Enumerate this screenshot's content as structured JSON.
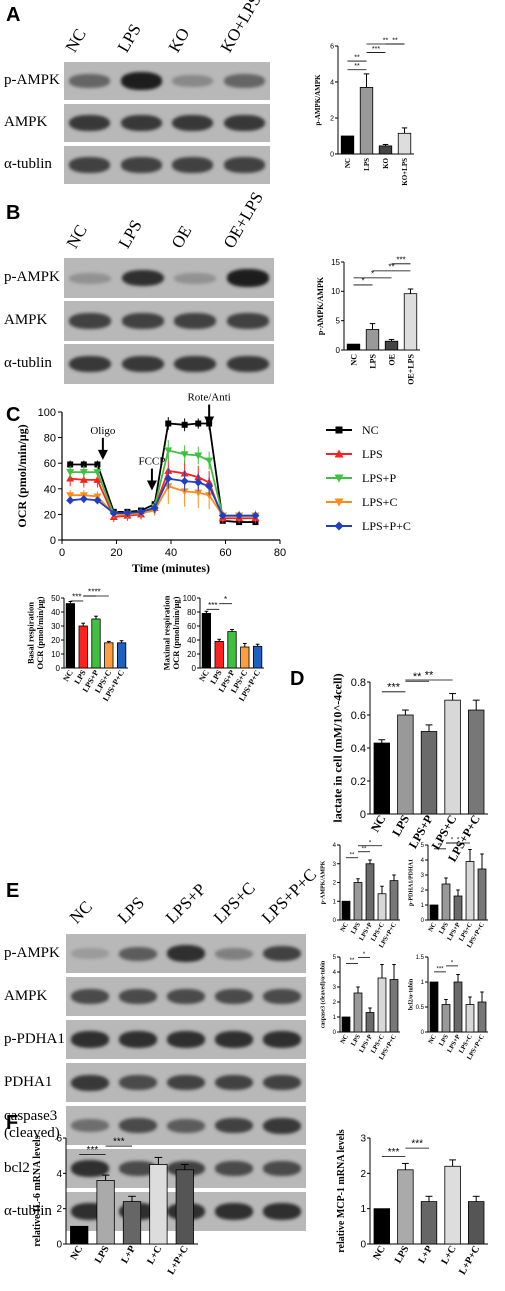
{
  "panels": {
    "A": {
      "letter": "A",
      "lanes": [
        "NC",
        "LPS",
        "KO",
        "KO+LPS"
      ],
      "blot_rows": [
        {
          "label": "p-AMPK",
          "intensity": [
            0.55,
            0.95,
            0.35,
            0.55
          ]
        },
        {
          "label": "AMPK",
          "intensity": [
            0.8,
            0.8,
            0.8,
            0.8
          ]
        },
        {
          "label": "α-tublin",
          "intensity": [
            0.75,
            0.75,
            0.75,
            0.75
          ]
        }
      ]
    },
    "B": {
      "letter": "B",
      "lanes": [
        "NC",
        "LPS",
        "OE",
        "OE+LPS"
      ],
      "blot_rows": [
        {
          "label": "p-AMPK",
          "intensity": [
            0.3,
            0.85,
            0.3,
            0.95
          ]
        },
        {
          "label": "AMPK",
          "intensity": [
            0.75,
            0.75,
            0.75,
            0.75
          ]
        },
        {
          "label": "α-tublin",
          "intensity": [
            0.8,
            0.8,
            0.8,
            0.8
          ]
        }
      ]
    },
    "C": {
      "letter": "C"
    },
    "D": {
      "letter": "D"
    },
    "E": {
      "letter": "E",
      "lanes": [
        "NC",
        "LPS",
        "LPS+P",
        "LPS+C",
        "LPS+P+C"
      ],
      "blot_rows": [
        {
          "label": "p-AMPK",
          "intensity": [
            0.25,
            0.6,
            0.85,
            0.4,
            0.75
          ]
        },
        {
          "label": "AMPK",
          "intensity": [
            0.7,
            0.7,
            0.7,
            0.7,
            0.7
          ]
        },
        {
          "label": "p-PDHA1",
          "intensity": [
            0.85,
            0.85,
            0.85,
            0.85,
            0.85
          ]
        },
        {
          "label": "PDHA1",
          "intensity": [
            0.8,
            0.7,
            0.75,
            0.75,
            0.75
          ]
        },
        {
          "label": "caspase3\n(cleaved)",
          "intensity": [
            0.5,
            0.7,
            0.6,
            0.75,
            0.8
          ]
        },
        {
          "label": "bcl2",
          "intensity": [
            0.85,
            0.7,
            0.75,
            0.7,
            0.7
          ]
        },
        {
          "label": "α-tublin",
          "intensity": [
            0.85,
            0.85,
            0.85,
            0.85,
            0.85
          ]
        }
      ]
    },
    "F": {
      "letter": "F"
    }
  },
  "chart_data": [
    {
      "id": "A-bar",
      "type": "bar",
      "categories": [
        "NC",
        "LPS",
        "KO",
        "KO+LPS"
      ],
      "values": [
        1.0,
        3.7,
        0.45,
        1.15
      ],
      "errors": [
        0.0,
        0.75,
        0.08,
        0.3
      ],
      "colors": [
        "#000000",
        "#999999",
        "#444444",
        "#dddddd"
      ],
      "ylabel": "p-AMPK/AMPK",
      "ylim": [
        0,
        6
      ],
      "yticks": [
        0,
        2,
        4,
        6
      ],
      "significance": [
        {
          "from": 0,
          "to": 1,
          "label": "**"
        },
        {
          "from": 0,
          "to": 1,
          "label": "**"
        },
        {
          "from": 1,
          "to": 2,
          "label": "***"
        },
        {
          "from": 1,
          "to": 3,
          "label": "**"
        },
        {
          "from": 2,
          "to": 3,
          "label": "**"
        }
      ]
    },
    {
      "id": "B-bar",
      "type": "bar",
      "categories": [
        "NC",
        "LPS",
        "OE",
        "OE+LPS"
      ],
      "values": [
        1.0,
        3.5,
        1.5,
        9.6
      ],
      "errors": [
        0.0,
        1.0,
        0.3,
        0.8
      ],
      "colors": [
        "#000000",
        "#999999",
        "#444444",
        "#dddddd"
      ],
      "ylabel": "p-AMPK/AMPK",
      "ylim": [
        0,
        15
      ],
      "yticks": [
        0,
        5,
        10,
        15
      ],
      "significance": [
        {
          "from": 0,
          "to": 1,
          "label": "*"
        },
        {
          "from": 0,
          "to": 2,
          "label": "*"
        },
        {
          "from": 1,
          "to": 3,
          "label": "**"
        },
        {
          "from": 2,
          "to": 3,
          "label": "***"
        }
      ]
    },
    {
      "id": "C-line",
      "type": "line",
      "xlabel": "Time (minutes)",
      "ylabel": "OCR (pmol/min/μg)",
      "xlim": [
        0,
        80
      ],
      "ylim": [
        0,
        100
      ],
      "xticks": [
        0,
        20,
        40,
        60,
        80
      ],
      "yticks": [
        0,
        20,
        40,
        60,
        80,
        100
      ],
      "annotations": [
        {
          "label": "Oligo",
          "x": 15,
          "y": 72
        },
        {
          "label": "FCCP",
          "x": 33,
          "y": 48
        },
        {
          "label": "Rote/Anti",
          "x": 54,
          "y": 98
        }
      ],
      "x": [
        3,
        8,
        13,
        19,
        24,
        29,
        34,
        39,
        45,
        50,
        54,
        59,
        65,
        71
      ],
      "series": [
        {
          "name": "NC",
          "color": "#000000",
          "marker": "square",
          "values": [
            59,
            59,
            59,
            22,
            22,
            23,
            28,
            91,
            90,
            91,
            91,
            15,
            14,
            14
          ],
          "errors": [
            3,
            3,
            3,
            2,
            2,
            2,
            3,
            5,
            5,
            4,
            5,
            2,
            2,
            2
          ]
        },
        {
          "name": "LPS",
          "color": "#ff2020",
          "marker": "triangle",
          "values": [
            48,
            47,
            47,
            18,
            19,
            20,
            25,
            54,
            52,
            49,
            45,
            17,
            17,
            17
          ],
          "errors": [
            6,
            6,
            6,
            4,
            4,
            4,
            5,
            12,
            10,
            9,
            9,
            4,
            4,
            4
          ]
        },
        {
          "name": "LPS+P",
          "color": "#40c040",
          "marker": "down-triangle",
          "values": [
            53,
            53,
            53,
            20,
            20,
            21,
            26,
            70,
            67,
            66,
            62,
            19,
            19,
            19
          ],
          "errors": [
            5,
            5,
            5,
            3,
            3,
            3,
            4,
            8,
            7,
            7,
            7,
            3,
            3,
            3
          ]
        },
        {
          "name": "LPS+C",
          "color": "#ff8c1a",
          "marker": "down-triangle",
          "values": [
            35,
            35,
            34,
            20,
            20,
            21,
            23,
            42,
            38,
            37,
            35,
            19,
            19,
            19
          ],
          "errors": [
            4,
            4,
            4,
            3,
            3,
            3,
            4,
            14,
            12,
            12,
            11,
            4,
            4,
            4
          ]
        },
        {
          "name": "LPS+P+C",
          "color": "#2040c0",
          "marker": "diamond",
          "values": [
            31,
            32,
            31,
            21,
            21,
            22,
            25,
            48,
            46,
            45,
            42,
            19,
            19,
            19
          ],
          "errors": [
            3,
            3,
            3,
            3,
            3,
            3,
            4,
            8,
            8,
            7,
            7,
            3,
            3,
            3
          ]
        }
      ]
    },
    {
      "id": "C-basal",
      "type": "bar",
      "categories": [
        "NC",
        "LPS",
        "LPS+P",
        "LPS+C",
        "LPS+P+C"
      ],
      "values": [
        46,
        30,
        35,
        18,
        18
      ],
      "errors": [
        1.5,
        2,
        2,
        1,
        1.5
      ],
      "colors": [
        "#000000",
        "#ff2020",
        "#40c040",
        "#ff9d40",
        "#2060c0"
      ],
      "ylabel": "Basal respiration\nOCR (pmol/min/μg)",
      "ylim": [
        0,
        50
      ],
      "yticks": [
        0,
        10,
        20,
        30,
        40,
        50
      ],
      "significance": [
        {
          "from": 0,
          "to": 1,
          "label": "***"
        },
        {
          "from": 1,
          "to": 2,
          "label": "*"
        },
        {
          "from": 1,
          "to": 3,
          "label": "***"
        }
      ]
    },
    {
      "id": "C-maximal",
      "type": "bar",
      "categories": [
        "NC",
        "LPS",
        "LPS+P",
        "LPS+C",
        "LPS+P+C"
      ],
      "values": [
        78,
        38,
        52,
        30,
        31
      ],
      "errors": [
        3,
        3,
        3,
        5,
        3
      ],
      "colors": [
        "#000000",
        "#ff2020",
        "#40c040",
        "#ff9d40",
        "#2060c0"
      ],
      "ylabel": "Maximal respiration\nOCR (pmol/min/μg)",
      "ylim": [
        0,
        100
      ],
      "yticks": [
        0,
        20,
        40,
        60,
        80,
        100
      ],
      "significance": [
        {
          "from": 0,
          "to": 1,
          "label": "***"
        },
        {
          "from": 1,
          "to": 2,
          "label": "*"
        }
      ]
    },
    {
      "id": "D-bar",
      "type": "bar",
      "categories": [
        "NC",
        "LPS",
        "LPS+P",
        "LPS+C",
        "LPS+P+C"
      ],
      "values": [
        0.43,
        0.6,
        0.5,
        0.69,
        0.63
      ],
      "errors": [
        0.02,
        0.03,
        0.04,
        0.04,
        0.06
      ],
      "colors": [
        "#000000",
        "#999999",
        "#6a6a6a",
        "#d8d8d8",
        "#777777"
      ],
      "ylabel": "lactate in cell (mM/10^-4cell)",
      "ylim": [
        0,
        0.8
      ],
      "yticks": [
        0,
        0.2,
        0.4,
        0.6,
        0.8
      ],
      "significance": [
        {
          "from": 0,
          "to": 1,
          "label": "***"
        },
        {
          "from": 1,
          "to": 2,
          "label": "**"
        },
        {
          "from": 1,
          "to": 3,
          "label": "**"
        }
      ]
    },
    {
      "id": "E-pampk",
      "type": "bar",
      "categories": [
        "NC",
        "LPS",
        "LPS+P",
        "LPS+C",
        "LPS+P+C"
      ],
      "values": [
        1.0,
        2.0,
        3.0,
        1.4,
        2.1
      ],
      "errors": [
        0,
        0.2,
        0.2,
        0.4,
        0.3
      ],
      "colors": [
        "#000000",
        "#999999",
        "#6a6a6a",
        "#d8d8d8",
        "#777777"
      ],
      "ylabel": "p-AMPK/AMPK",
      "ylim": [
        0,
        4
      ],
      "yticks": [
        0,
        1,
        2,
        3,
        4
      ],
      "significance": [
        {
          "from": 0,
          "to": 1,
          "label": "**"
        },
        {
          "from": 1,
          "to": 2,
          "label": "**"
        },
        {
          "from": 1,
          "to": 3,
          "label": "*"
        }
      ]
    },
    {
      "id": "E-ppdha",
      "type": "bar",
      "categories": [
        "NC",
        "LPS",
        "LPS+P",
        "LPS+C",
        "LPS+P+C"
      ],
      "values": [
        1.0,
        2.4,
        1.6,
        3.9,
        3.4
      ],
      "errors": [
        0,
        0.4,
        0.4,
        0.8,
        1.0
      ],
      "colors": [
        "#000000",
        "#999999",
        "#6a6a6a",
        "#d8d8d8",
        "#777777"
      ],
      "ylabel": "p-PDHA1/PDHA1",
      "ylim": [
        0,
        5
      ],
      "yticks": [
        0,
        1,
        2,
        3,
        4,
        5
      ],
      "significance": [
        {
          "from": 0,
          "to": 1,
          "label": "**"
        },
        {
          "from": 1,
          "to": 2,
          "label": "*"
        },
        {
          "from": 1,
          "to": 3,
          "label": "*"
        }
      ]
    },
    {
      "id": "E-caspase",
      "type": "bar",
      "categories": [
        "NC",
        "LPS",
        "LPS+P",
        "LPS+C",
        "LPS+P+C"
      ],
      "values": [
        1.0,
        2.6,
        1.3,
        3.6,
        3.5
      ],
      "errors": [
        0,
        0.4,
        0.3,
        0.9,
        1.0
      ],
      "colors": [
        "#000000",
        "#999999",
        "#6a6a6a",
        "#d8d8d8",
        "#777777"
      ],
      "ylabel": "caspase3 (cleaved)/α-tubin",
      "ylim": [
        0,
        5
      ],
      "yticks": [
        0,
        1,
        2,
        3,
        4,
        5
      ],
      "significance": [
        {
          "from": 0,
          "to": 1,
          "label": "**"
        },
        {
          "from": 1,
          "to": 2,
          "label": "*"
        }
      ]
    },
    {
      "id": "E-bcl2",
      "type": "bar",
      "categories": [
        "NC",
        "LPS",
        "LPS+P",
        "LPS+C",
        "LPS+P+C"
      ],
      "values": [
        1.0,
        0.55,
        1.0,
        0.55,
        0.6
      ],
      "errors": [
        0,
        0.1,
        0.15,
        0.15,
        0.2
      ],
      "colors": [
        "#000000",
        "#999999",
        "#6a6a6a",
        "#d8d8d8",
        "#777777"
      ],
      "ylabel": "bcl2/α-tubin",
      "ylim": [
        0,
        1.5
      ],
      "yticks": [
        0,
        0.5,
        1.0,
        1.5
      ],
      "significance": [
        {
          "from": 0,
          "to": 1,
          "label": "***"
        },
        {
          "from": 1,
          "to": 2,
          "label": "*"
        }
      ]
    },
    {
      "id": "F-il6",
      "type": "bar",
      "categories": [
        "NC",
        "LPS",
        "L+P",
        "L+C",
        "L+P+C"
      ],
      "values": [
        1.0,
        3.6,
        2.4,
        4.5,
        4.2
      ],
      "errors": [
        0,
        0.3,
        0.3,
        0.4,
        0.3
      ],
      "colors": [
        "#000000",
        "#aaaaaa",
        "#666666",
        "#dddddd",
        "#555555"
      ],
      "ylabel": "relative IL-6 mRNA levels",
      "ylim": [
        0,
        6
      ],
      "yticks": [
        0,
        2,
        4,
        6
      ],
      "significance": [
        {
          "from": 0,
          "to": 1,
          "label": "***"
        },
        {
          "from": 1,
          "to": 2,
          "label": "***"
        }
      ]
    },
    {
      "id": "F-mcp1",
      "type": "bar",
      "categories": [
        "NC",
        "LPS",
        "L+P",
        "L+C",
        "L+P+C"
      ],
      "values": [
        1.0,
        2.1,
        1.2,
        2.2,
        1.2
      ],
      "errors": [
        0,
        0.18,
        0.15,
        0.18,
        0.15
      ],
      "colors": [
        "#000000",
        "#aaaaaa",
        "#666666",
        "#dddddd",
        "#555555"
      ],
      "ylabel": "relative MCP-1 mRNA levels",
      "ylim": [
        0,
        3
      ],
      "yticks": [
        0,
        1,
        2,
        3
      ],
      "significance": [
        {
          "from": 0,
          "to": 1,
          "label": "***"
        },
        {
          "from": 1,
          "to": 2,
          "label": "***"
        }
      ]
    }
  ]
}
